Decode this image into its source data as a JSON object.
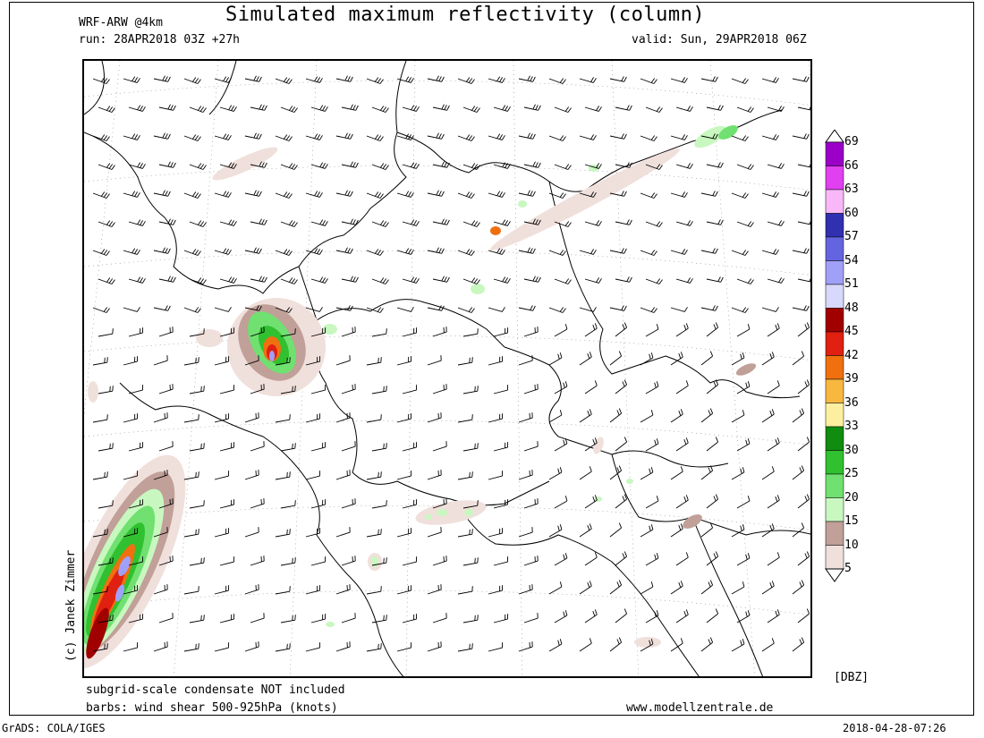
{
  "header": {
    "model": "WRF-ARW @4km",
    "title": "Simulated maximum reflectivity (column)",
    "run": "run: 28APR2018 03Z +27h",
    "valid": "valid: Sun, 29APR2018 06Z"
  },
  "footer": {
    "note1": "subgrid-scale condensate NOT included",
    "note2": "barbs: wind shear 500-925hPa (knots)",
    "website": "www.modellzentrale.de",
    "grads": "GrADS: COLA/IGES",
    "timestamp": "2018-04-28-07:26",
    "copyright": "(c) Janek Zimmer"
  },
  "colorbar": {
    "unit": "[DBZ]",
    "labels": [
      "69",
      "66",
      "63",
      "60",
      "57",
      "54",
      "51",
      "48",
      "45",
      "42",
      "39",
      "36",
      "33",
      "30",
      "25",
      "20",
      "15",
      "10",
      "5"
    ],
    "colors": [
      "#9a00c8",
      "#e040f0",
      "#f8b8f8",
      "#3030b0",
      "#6464e0",
      "#a0a0f8",
      "#d8d8fc",
      "#a00000",
      "#e02010",
      "#f07010",
      "#f8b840",
      "#fcf0a0",
      "#108c10",
      "#30c030",
      "#70e070",
      "#c8f8c0",
      "#c0a098",
      "#f0e0dc"
    ]
  },
  "map_region": "Central Europe",
  "radar_colors": {
    "light": "#f0e0dc",
    "tan": "#c0a098",
    "lightgreen": "#c8f8c0",
    "green": "#70e070",
    "darkgreen": "#30c030",
    "yellow": "#fcf0a0",
    "orange": "#f07010",
    "red": "#e02010",
    "darkred": "#a00000",
    "violet": "#a0a0f8"
  }
}
